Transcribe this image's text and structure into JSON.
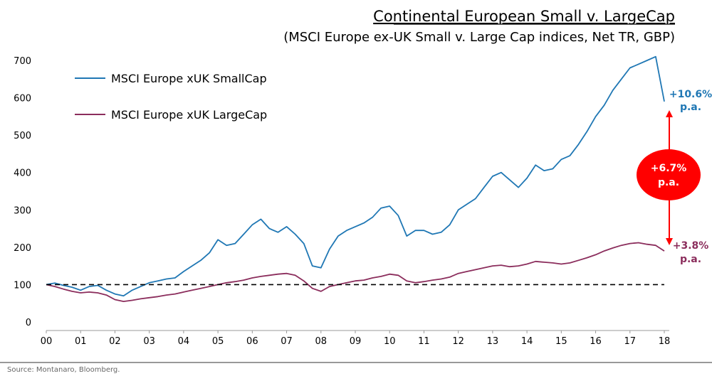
{
  "chart_data": {
    "type": "line",
    "title": "Continental European Small v. LargeCap",
    "subtitle": "(MSCI Europe ex-UK Small v. Large Cap indices, Net TR, GBP)",
    "source": "Source: Montanaro, Bloomberg.",
    "ylim": [
      0,
      700
    ],
    "y_ticks": [
      0,
      100,
      200,
      300,
      400,
      500,
      600,
      700
    ],
    "x_ticks": [
      "00",
      "01",
      "02",
      "03",
      "04",
      "05",
      "06",
      "07",
      "08",
      "09",
      "10",
      "11",
      "12",
      "13",
      "14",
      "15",
      "16",
      "17",
      "18"
    ],
    "xlim": [
      0,
      18
    ],
    "legend_position": "top-left",
    "grid": false,
    "series": [
      {
        "name": "MSCI Europe xUK SmallCap",
        "color": "#1f77b4",
        "x": [
          0,
          0.25,
          0.5,
          0.75,
          1.0,
          1.25,
          1.5,
          1.75,
          2.0,
          2.25,
          2.5,
          2.75,
          3.0,
          3.25,
          3.5,
          3.75,
          4.0,
          4.25,
          4.5,
          4.75,
          5.0,
          5.25,
          5.5,
          5.75,
          6.0,
          6.25,
          6.5,
          6.75,
          7.0,
          7.25,
          7.5,
          7.75,
          8.0,
          8.25,
          8.5,
          8.75,
          9.0,
          9.25,
          9.5,
          9.75,
          10.0,
          10.25,
          10.5,
          10.75,
          11.0,
          11.25,
          11.5,
          11.75,
          12.0,
          12.25,
          12.5,
          12.75,
          13.0,
          13.25,
          13.5,
          13.75,
          14.0,
          14.25,
          14.5,
          14.75,
          15.0,
          15.25,
          15.5,
          15.75,
          16.0,
          16.25,
          16.5,
          16.75,
          17.0,
          17.25,
          17.5,
          17.75,
          18.0
        ],
        "values": [
          100,
          104,
          98,
          93,
          85,
          95,
          98,
          85,
          75,
          70,
          85,
          95,
          105,
          110,
          115,
          118,
          135,
          150,
          165,
          185,
          220,
          205,
          210,
          235,
          260,
          275,
          250,
          240,
          255,
          235,
          210,
          150,
          145,
          195,
          230,
          245,
          255,
          265,
          280,
          305,
          310,
          285,
          230,
          245,
          245,
          235,
          240,
          260,
          300,
          315,
          330,
          360,
          390,
          400,
          380,
          360,
          385,
          420,
          405,
          410,
          435,
          445,
          475,
          510,
          550,
          580,
          620,
          650,
          680,
          690,
          700,
          710,
          590
        ]
      },
      {
        "name": "MSCI Europe xUK LargeCap",
        "color": "#8b2d5c",
        "x": [
          0,
          0.25,
          0.5,
          0.75,
          1.0,
          1.25,
          1.5,
          1.75,
          2.0,
          2.25,
          2.5,
          2.75,
          3.0,
          3.25,
          3.5,
          3.75,
          4.0,
          4.25,
          4.5,
          4.75,
          5.0,
          5.25,
          5.5,
          5.75,
          6.0,
          6.25,
          6.5,
          6.75,
          7.0,
          7.25,
          7.5,
          7.75,
          8.0,
          8.25,
          8.5,
          8.75,
          9.0,
          9.25,
          9.5,
          9.75,
          10.0,
          10.25,
          10.5,
          10.75,
          11.0,
          11.25,
          11.5,
          11.75,
          12.0,
          12.25,
          12.5,
          12.75,
          13.0,
          13.25,
          13.5,
          13.75,
          14.0,
          14.25,
          14.5,
          14.75,
          15.0,
          15.25,
          15.5,
          15.75,
          16.0,
          16.25,
          16.5,
          16.75,
          17.0,
          17.25,
          17.5,
          17.75,
          18.0
        ],
        "values": [
          100,
          95,
          88,
          82,
          78,
          80,
          78,
          72,
          60,
          55,
          58,
          62,
          65,
          68,
          72,
          75,
          80,
          85,
          90,
          95,
          100,
          105,
          108,
          112,
          118,
          122,
          125,
          128,
          130,
          125,
          110,
          90,
          82,
          95,
          100,
          105,
          110,
          112,
          118,
          122,
          128,
          125,
          110,
          105,
          108,
          112,
          115,
          120,
          130,
          135,
          140,
          145,
          150,
          152,
          148,
          150,
          155,
          162,
          160,
          158,
          155,
          158,
          165,
          172,
          180,
          190,
          198,
          205,
          210,
          212,
          208,
          205,
          190
        ]
      }
    ],
    "reference_line": {
      "value": 100,
      "style": "dashed",
      "color": "#000000"
    },
    "annotations": {
      "small_return": {
        "line1": "+10.6%",
        "line2": "p.a."
      },
      "large_return": {
        "line1": "+3.8%",
        "line2": "p.a."
      },
      "spread": {
        "line1": "+6.7%",
        "line2": "p.a.",
        "color": "#ff0000"
      }
    }
  }
}
